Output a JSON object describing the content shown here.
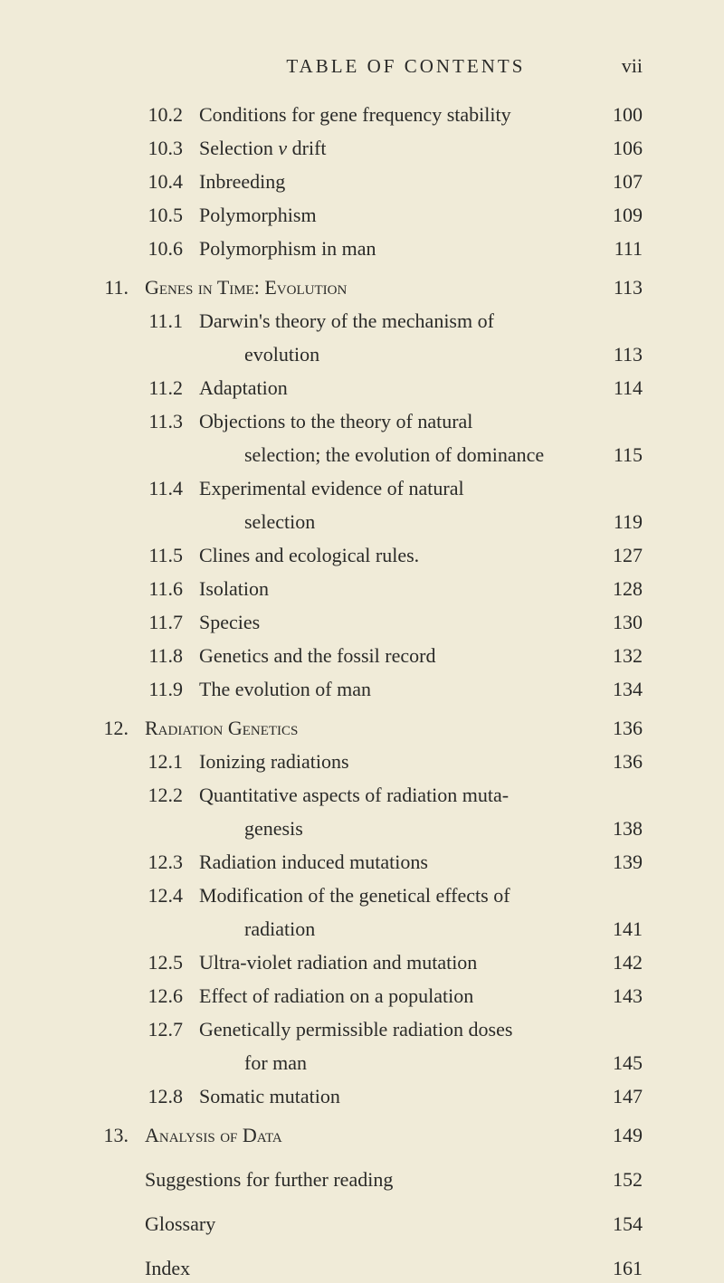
{
  "header": {
    "title": "TABLE OF CONTENTS",
    "page": "vii"
  },
  "entries": [
    {
      "type": "section",
      "num": "10.2",
      "title": "Conditions for gene frequency stability",
      "page": "100"
    },
    {
      "type": "section",
      "num": "10.3",
      "title": "Selection v drift",
      "page": "106",
      "italic_word": "v"
    },
    {
      "type": "section",
      "num": "10.4",
      "title": "Inbreeding",
      "page": "107"
    },
    {
      "type": "section",
      "num": "10.5",
      "title": "Polymorphism",
      "page": "109"
    },
    {
      "type": "section",
      "num": "10.6",
      "title": "Polymorphism in man",
      "page": "111"
    },
    {
      "type": "chapter",
      "num": "11.",
      "title": "Genes in Time: Evolution",
      "page": "113"
    },
    {
      "type": "section",
      "num": "11.1",
      "title": "Darwin's theory of the mechanism of",
      "page": ""
    },
    {
      "type": "continuation",
      "title": "evolution",
      "page": "113"
    },
    {
      "type": "section",
      "num": "11.2",
      "title": "Adaptation",
      "page": "114"
    },
    {
      "type": "section",
      "num": "11.3",
      "title": "Objections to the theory of natural",
      "page": ""
    },
    {
      "type": "continuation",
      "title": "selection; the evolution of dominance",
      "page": "115"
    },
    {
      "type": "section",
      "num": "11.4",
      "title": "Experimental evidence of natural",
      "page": ""
    },
    {
      "type": "continuation",
      "title": "selection",
      "page": "119"
    },
    {
      "type": "section",
      "num": "11.5",
      "title": "Clines and ecological rules.",
      "page": "127"
    },
    {
      "type": "section",
      "num": "11.6",
      "title": "Isolation",
      "page": "128"
    },
    {
      "type": "section",
      "num": "11.7",
      "title": "Species",
      "page": "130"
    },
    {
      "type": "section",
      "num": "11.8",
      "title": "Genetics and the fossil record",
      "page": "132"
    },
    {
      "type": "section",
      "num": "11.9",
      "title": "The evolution of man",
      "page": "134"
    },
    {
      "type": "chapter",
      "num": "12.",
      "title": "Radiation Genetics",
      "page": "136"
    },
    {
      "type": "section",
      "num": "12.1",
      "title": "Ionizing radiations",
      "page": "136"
    },
    {
      "type": "section",
      "num": "12.2",
      "title": "Quantitative aspects of radiation muta-",
      "page": ""
    },
    {
      "type": "continuation",
      "title": "genesis",
      "page": "138"
    },
    {
      "type": "section",
      "num": "12.3",
      "title": "Radiation induced mutations",
      "page": "139"
    },
    {
      "type": "section",
      "num": "12.4",
      "title": "Modification of the genetical effects of",
      "page": ""
    },
    {
      "type": "continuation",
      "title": "radiation",
      "page": "141"
    },
    {
      "type": "section",
      "num": "12.5",
      "title": "Ultra-violet radiation and mutation",
      "page": "142"
    },
    {
      "type": "section",
      "num": "12.6",
      "title": "Effect of radiation on a population",
      "page": "143"
    },
    {
      "type": "section",
      "num": "12.7",
      "title": "Genetically permissible radiation doses",
      "page": ""
    },
    {
      "type": "continuation",
      "title": "for man",
      "page": "145"
    },
    {
      "type": "section",
      "num": "12.8",
      "title": "Somatic mutation",
      "page": "147"
    },
    {
      "type": "chapter",
      "num": "13.",
      "title": "Analysis of Data",
      "page": "149"
    },
    {
      "type": "backmatter",
      "title": "Suggestions for further reading",
      "page": "152"
    },
    {
      "type": "backmatter",
      "title": "Glossary",
      "page": "154"
    },
    {
      "type": "backmatter",
      "title": "Index",
      "page": "161"
    }
  ]
}
